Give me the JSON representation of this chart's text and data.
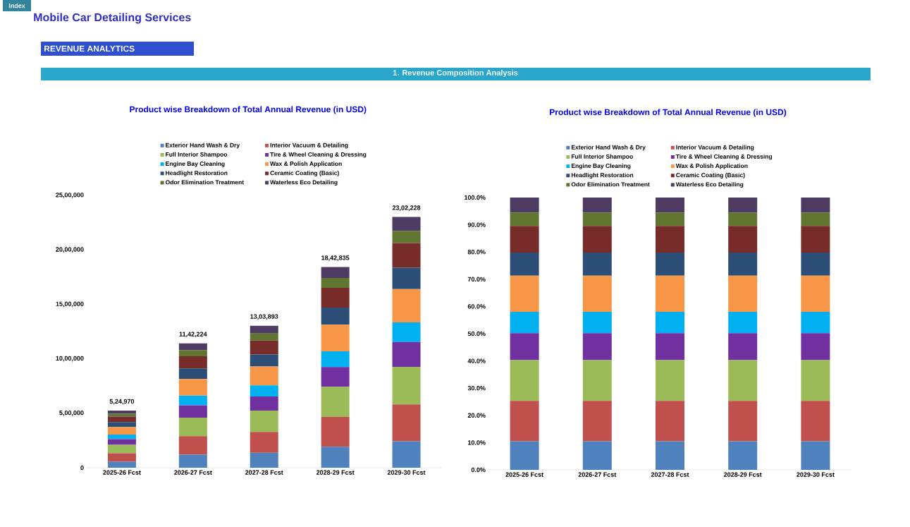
{
  "chart_data": [
    {
      "type": "bar",
      "stacked": true,
      "title": "Product wise Breakdown of Total Annual Revenue (in USD)",
      "annotations": [
        "Index",
        "Mobile Car Detailing Services",
        "REVENUE ANALYTICS",
        "1.  Revenue Composition Analysis"
      ],
      "categories": [
        "2025-26 Fcst",
        "2026-27 Fcst",
        "2027-28 Fcst",
        "2028-29 Fcst",
        "2029-30 Fcst"
      ],
      "series": [
        {
          "name": "Exterior Hand Wash & Dry",
          "color": "#4f81bd",
          "values": [
            55000,
            120000,
            137000,
            193000,
            242000
          ]
        },
        {
          "name": "Interior Vacuum & Detailing",
          "color": "#c0504d",
          "values": [
            76970,
            169224,
            191893,
            273835,
            339228
          ]
        },
        {
          "name": "Full Interior Shampoo",
          "color": "#9bbb59",
          "values": [
            79000,
            171000,
            196000,
            276000,
            345000
          ]
        },
        {
          "name": "Tire & Wheel Cleaning & Dressing",
          "color": "#7030a0",
          "values": [
            52000,
            113000,
            129000,
            182000,
            228000
          ]
        },
        {
          "name": "Engine Bay Cleaning",
          "color": "#00b0f0",
          "values": [
            41000,
            89000,
            102000,
            144000,
            180000
          ]
        },
        {
          "name": "Wax & Polish Application",
          "color": "#f79646",
          "values": [
            70000,
            152000,
            173000,
            245000,
            306000
          ]
        },
        {
          "name": "Headlight Restoration",
          "color": "#2c4d75",
          "values": [
            45000,
            97000,
            111000,
            157000,
            196000
          ]
        },
        {
          "name": "Ceramic Coating (Basic)",
          "color": "#772c2a",
          "values": [
            51000,
            112000,
            128000,
            181000,
            226000
          ]
        },
        {
          "name": "Odor Elimination Treatment",
          "color": "#5f7530",
          "values": [
            26000,
            56000,
            64000,
            90000,
            113000
          ]
        },
        {
          "name": "Waterless Eco Detailing",
          "color": "#4d3b62",
          "values": [
            29000,
            63000,
            72000,
            101000,
            127000
          ]
        }
      ],
      "totals": [
        "5,24,970",
        "11,42,224",
        "13,03,893",
        "18,42,835",
        "23,02,228"
      ],
      "ylim": [
        0,
        2500000
      ],
      "yticks": [
        0,
        {
          "value": 500000,
          "label": "5,00,000"
        },
        {
          "value": 1000000,
          "label": "10,00,000"
        },
        {
          "value": 1500000,
          "label": "15,00,000"
        },
        {
          "value": 2000000,
          "label": "20,00,000"
        },
        {
          "value": 2500000,
          "label": "25,00,000"
        }
      ],
      "grid": false,
      "legend": "top"
    },
    {
      "type": "bar",
      "stacked": true,
      "title": "Product wise Breakdown of Total Annual Revenue (in USD)",
      "categories": [
        "2025-26 Fcst",
        "2026-27 Fcst",
        "2027-28 Fcst",
        "2028-29 Fcst",
        "2029-30 Fcst"
      ],
      "series": [
        {
          "name": "Exterior Hand Wash & Dry",
          "color": "#4f81bd",
          "values": [
            10.5,
            10.5,
            10.5,
            10.5,
            10.5
          ]
        },
        {
          "name": "Interior Vacuum & Detailing",
          "color": "#c0504d",
          "values": [
            14.8,
            14.8,
            14.8,
            14.8,
            14.8
          ]
        },
        {
          "name": "Full Interior Shampoo",
          "color": "#9bbb59",
          "values": [
            15.0,
            15.0,
            15.0,
            15.0,
            15.0
          ]
        },
        {
          "name": "Tire & Wheel Cleaning & Dressing",
          "color": "#7030a0",
          "values": [
            9.9,
            9.9,
            9.9,
            9.9,
            9.9
          ]
        },
        {
          "name": "Engine Bay Cleaning",
          "color": "#00b0f0",
          "values": [
            7.8,
            7.8,
            7.8,
            7.8,
            7.8
          ]
        },
        {
          "name": "Wax & Polish Application",
          "color": "#f79646",
          "values": [
            13.3,
            13.3,
            13.3,
            13.3,
            13.3
          ]
        },
        {
          "name": "Headlight Restoration",
          "color": "#2c4d75",
          "values": [
            8.5,
            8.5,
            8.5,
            8.5,
            8.5
          ]
        },
        {
          "name": "Ceramic Coating (Basic)",
          "color": "#772c2a",
          "values": [
            9.8,
            9.8,
            9.8,
            9.8,
            9.8
          ]
        },
        {
          "name": "Odor Elimination Treatment",
          "color": "#5f7530",
          "values": [
            4.9,
            4.9,
            4.9,
            4.9,
            4.9
          ]
        },
        {
          "name": "Waterless Eco Detailing",
          "color": "#4d3b62",
          "values": [
            5.5,
            5.5,
            5.5,
            5.5,
            5.5
          ]
        }
      ],
      "ylim": [
        0,
        100
      ],
      "yticks": [
        {
          "value": 0,
          "label": "0.0%"
        },
        {
          "value": 10,
          "label": "10.0%"
        },
        {
          "value": 20,
          "label": "20.0%"
        },
        {
          "value": 30,
          "label": "30.0%"
        },
        {
          "value": 40,
          "label": "40.0%"
        },
        {
          "value": 50,
          "label": "50.0%"
        },
        {
          "value": 60,
          "label": "60.0%"
        },
        {
          "value": 70,
          "label": "70.0%"
        },
        {
          "value": 80,
          "label": "80.0%"
        },
        {
          "value": 90,
          "label": "90.0%"
        },
        {
          "value": 100,
          "label": "100.0%"
        }
      ],
      "grid": false,
      "legend": "top"
    }
  ]
}
